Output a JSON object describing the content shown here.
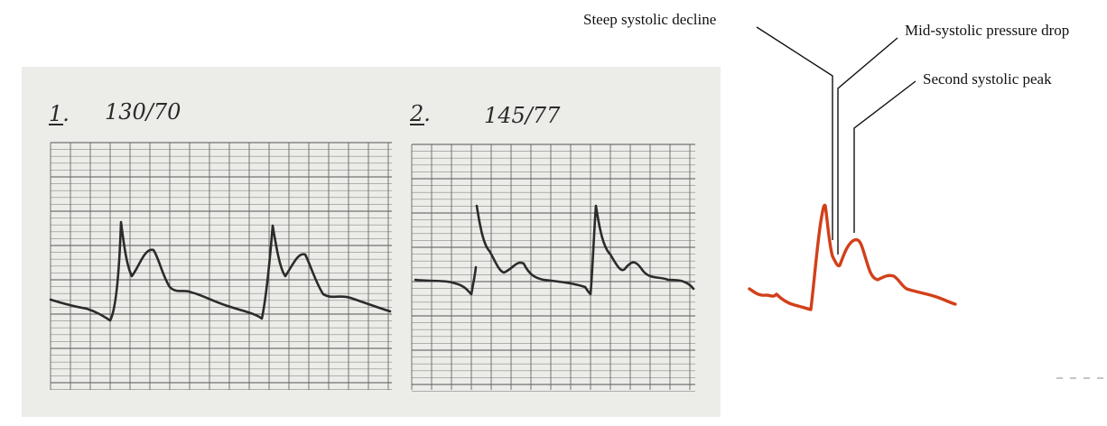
{
  "figure": {
    "panels": [
      {
        "number": "1.",
        "pressure": "130/70"
      },
      {
        "number": "2.",
        "pressure": "145/77"
      }
    ],
    "annotations": {
      "steep_decline": "Steep systolic decline",
      "mid_drop": "Mid-systolic pressure drop",
      "second_peak": "Second systolic peak"
    },
    "colors": {
      "waveform": "#d2401a",
      "paper": "#ecece9",
      "grid": "#555555",
      "trace": "#2b2b2b"
    }
  }
}
